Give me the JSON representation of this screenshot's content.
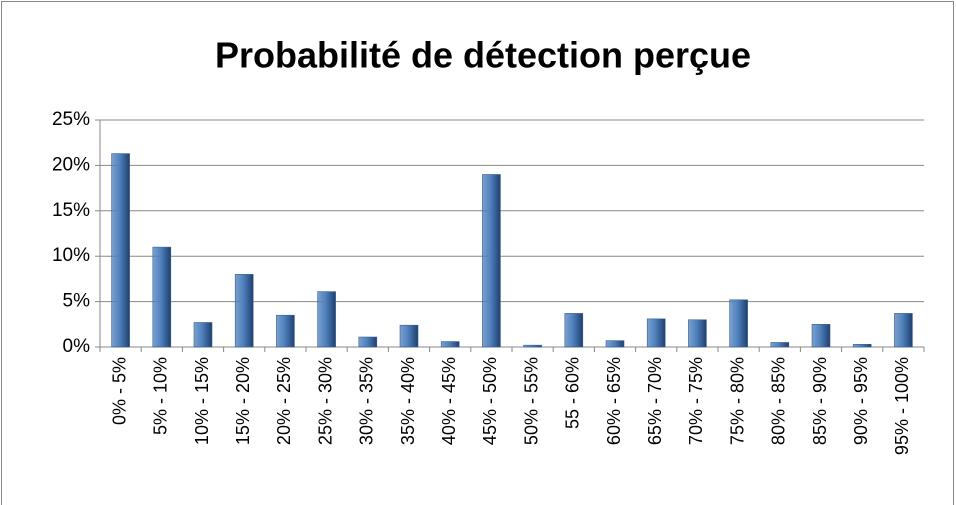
{
  "chart_data": {
    "type": "bar",
    "title": "Probabilité de détection perçue",
    "categories": [
      "0% - 5%",
      "5% - 10%",
      "10% - 15%",
      "15% - 20%",
      "20% - 25%",
      "25% - 30%",
      "30% - 35%",
      "35% - 40%",
      "40% - 45%",
      "45% - 50%",
      "50% - 55%",
      "55 - 60%",
      "60% - 65%",
      "65% - 70%",
      "70% - 75%",
      "75% - 80%",
      "80% - 85%",
      "85% - 90%",
      "90% - 95%",
      "95% - 100%"
    ],
    "values": [
      21.3,
      11,
      2.7,
      8,
      3.5,
      6.1,
      1.1,
      2.4,
      0.6,
      19,
      0.2,
      3.7,
      0.7,
      3.1,
      3,
      5.2,
      0.5,
      2.5,
      0.3,
      3.7
    ],
    "color": "#4f81bd",
    "ylim": [
      0,
      25
    ],
    "yticks": [
      {
        "value": 0,
        "label": "0%"
      },
      {
        "value": 5,
        "label": "5%"
      },
      {
        "value": 10,
        "label": "10%"
      },
      {
        "value": 15,
        "label": "15%"
      },
      {
        "value": 20,
        "label": "20%"
      },
      {
        "value": 25,
        "label": "25%"
      }
    ],
    "grid": true
  }
}
